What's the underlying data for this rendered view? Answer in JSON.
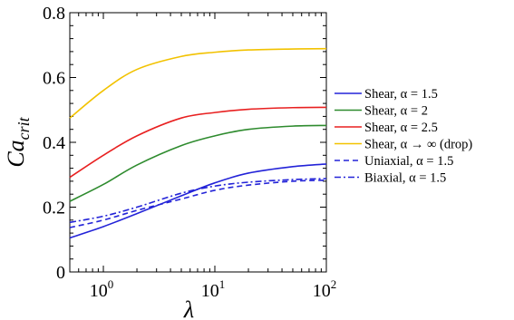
{
  "chart_data": {
    "type": "line",
    "xscale": "log",
    "xlim": [
      0.5,
      100
    ],
    "ylim": [
      0,
      0.8
    ],
    "xticks": [
      {
        "value": 1,
        "base": "10",
        "exp": "0"
      },
      {
        "value": 10,
        "base": "10",
        "exp": "1"
      },
      {
        "value": 100,
        "base": "10",
        "exp": "2"
      }
    ],
    "yticks": [
      {
        "value": 0,
        "label": "0"
      },
      {
        "value": 0.2,
        "label": "0.2"
      },
      {
        "value": 0.4,
        "label": "0.4"
      },
      {
        "value": 0.6,
        "label": "0.6"
      },
      {
        "value": 0.8,
        "label": "0.8"
      }
    ],
    "xlabel": "λ",
    "ylabel": "Ca",
    "ylabel_sub": "crit",
    "grid": false,
    "legend_position": "right",
    "series": [
      {
        "name": "Shear, α = 1.5",
        "color": "#2323d8",
        "dash": "solid",
        "x": [
          0.5,
          1,
          2,
          5,
          10,
          20,
          50,
          100
        ],
        "y": [
          0.105,
          0.14,
          0.18,
          0.235,
          0.275,
          0.305,
          0.325,
          0.333
        ]
      },
      {
        "name": "Shear, α = 2",
        "color": "#2e8b2e",
        "dash": "solid",
        "x": [
          0.5,
          1,
          2,
          5,
          10,
          20,
          50,
          100
        ],
        "y": [
          0.218,
          0.27,
          0.33,
          0.39,
          0.42,
          0.44,
          0.45,
          0.452
        ]
      },
      {
        "name": "Shear, α = 2.5",
        "color": "#e82020",
        "dash": "solid",
        "x": [
          0.5,
          1,
          2,
          5,
          10,
          20,
          50,
          100
        ],
        "y": [
          0.292,
          0.36,
          0.42,
          0.475,
          0.492,
          0.502,
          0.507,
          0.508
        ]
      },
      {
        "name": "Shear, α → ∞ (drop)",
        "color": "#f2c200",
        "dash": "solid",
        "x": [
          0.5,
          1,
          2,
          5,
          10,
          20,
          50,
          100
        ],
        "y": [
          0.475,
          0.56,
          0.625,
          0.665,
          0.678,
          0.685,
          0.688,
          0.689
        ]
      },
      {
        "name": "Uniaxial, α = 1.5",
        "color": "#2323d8",
        "dash": "dashed",
        "x": [
          0.5,
          1,
          2,
          5,
          10,
          20,
          50,
          100
        ],
        "y": [
          0.137,
          0.16,
          0.19,
          0.225,
          0.252,
          0.268,
          0.28,
          0.283
        ]
      },
      {
        "name": "Biaxial, α = 1.5",
        "color": "#2323d8",
        "dash": "dashdot",
        "x": [
          0.5,
          1,
          2,
          5,
          10,
          20,
          50,
          100
        ],
        "y": [
          0.153,
          0.172,
          0.2,
          0.243,
          0.265,
          0.277,
          0.285,
          0.288
        ]
      }
    ]
  }
}
